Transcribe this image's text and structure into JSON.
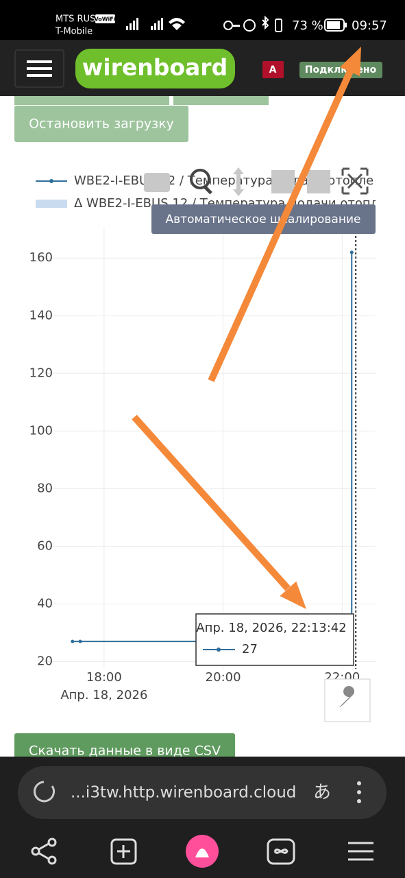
{
  "status_bar": {
    "carrier": "MTS RUS",
    "vowifi": "VoWiFi",
    "carrier2": "T-Mobile",
    "battery": "73 %",
    "time": "09:57"
  },
  "header": {
    "logo": "wirenboard",
    "badge": "A",
    "status": "Подключено"
  },
  "buttons": {
    "stop": "Остановить загрузку",
    "csv": "Скачать данные в виде CSV"
  },
  "chart_data": {
    "type": "line",
    "x": [
      17.47,
      17.6,
      22.16,
      22.16
    ],
    "series": [
      {
        "name": "WBE2-I-EBUS 12 / Температура подачи отопле",
        "color": "#2f6e9b",
        "values": [
          27,
          27,
          27,
          162
        ]
      },
      {
        "name": "Δ WBE2-I-EBUS 12 / Температура подачи отопл",
        "color": "#c9dcef"
      }
    ],
    "xlim": [
      17,
      22.56
    ],
    "ylim": [
      17.5,
      171
    ],
    "xticks": [
      {
        "value": 18,
        "label": "18:00"
      },
      {
        "value": 20,
        "label": "20:00"
      },
      {
        "value": 22,
        "label": "22:00"
      }
    ],
    "yticks": [
      20,
      40,
      60,
      80,
      100,
      120,
      140,
      160
    ],
    "x_date_label": "Апр. 18, 2026",
    "grid": true,
    "hover": {
      "label": "Апр. 18, 2026, 22:13:42",
      "x": 22.228,
      "value": 27
    },
    "modebar_tooltip": "Автоматическое шкалирование"
  },
  "browser": {
    "url": "...i3tw.http.wirenboard.cloud",
    "translate": "あ"
  }
}
